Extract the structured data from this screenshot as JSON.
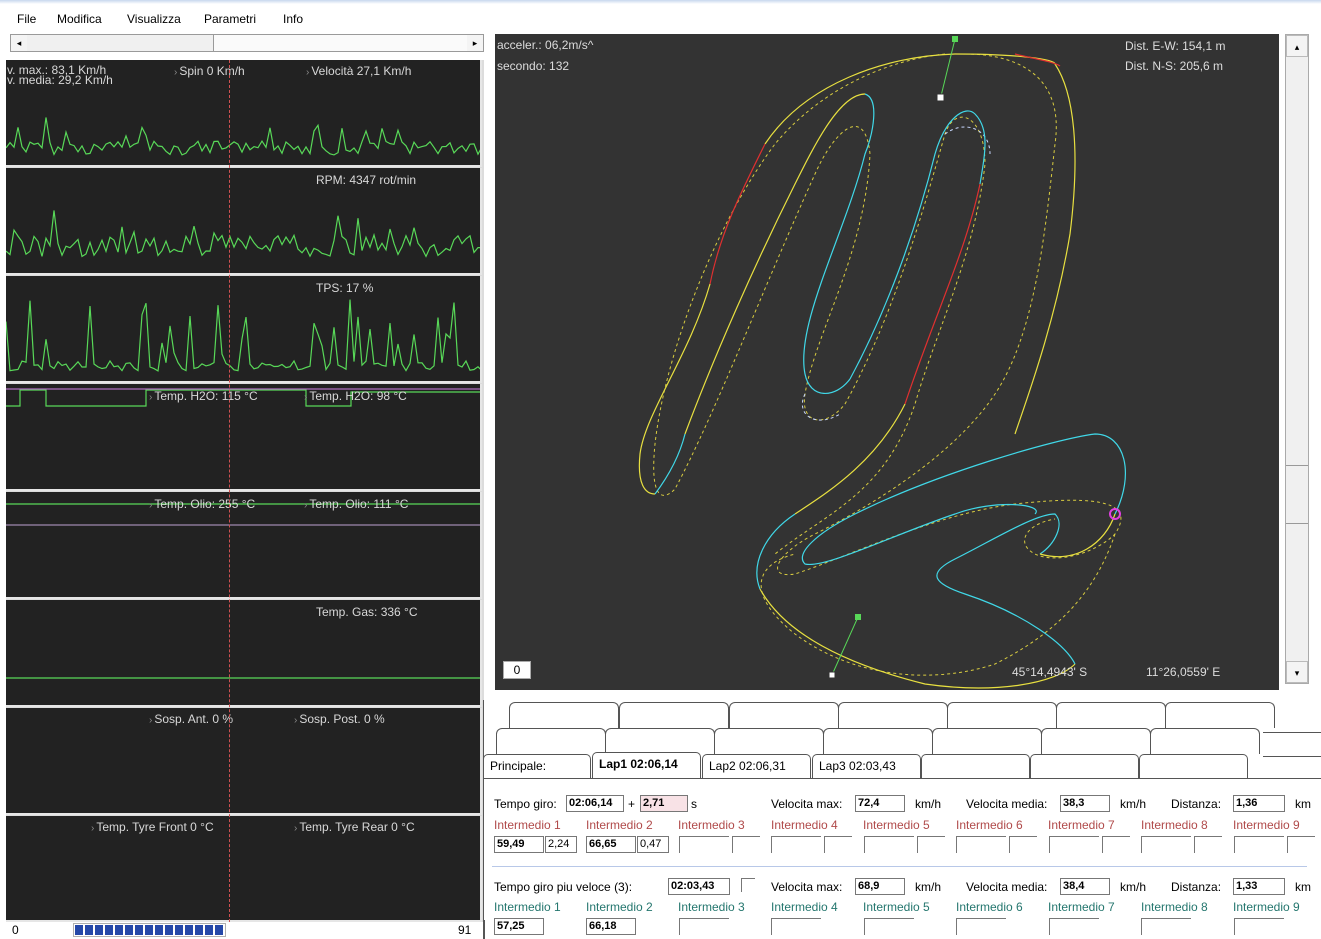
{
  "menu": [
    "File",
    "Modifica",
    "Visualizza",
    "Parametri",
    "Info"
  ],
  "hscroll": {
    "left_arrow": "◂",
    "right_arrow": "▸"
  },
  "panels": {
    "speed": {
      "vmax": "v. max.: 83,1 Km/h",
      "vmedia": "v. media: 29,2 Km/h",
      "spin": "Spin  0 Km/h",
      "velocita": "Velocità  27,1 Km/h"
    },
    "rpm": {
      "label": "RPM:  4347 rot/min"
    },
    "tps": {
      "label": "TPS:  17 %"
    },
    "h2o": {
      "label1": "Temp. H2O:  115 °C",
      "label2": "Temp. H2O:  98 °C"
    },
    "olio": {
      "label1": "Temp. Olio:  255 °C",
      "label2": "Temp. Olio:  111 °C"
    },
    "gas": {
      "label": "Temp. Gas:  336 °C"
    },
    "sosp": {
      "label1": "Sosp. Ant.   0 %",
      "label2": "Sosp. Post.   0 %"
    },
    "tyre": {
      "label1": "Temp. Tyre Front    0 °C",
      "label2": "Temp. Tyre Rear    0 °C"
    }
  },
  "status": {
    "left": "0",
    "right": "91",
    "progress_fraction": 0.98
  },
  "map": {
    "accel": "acceler.: 06,2m/s^",
    "secondo": "secondo: 132",
    "dist_ew": "Dist. E-W: 154,1 m",
    "dist_ns": "Dist. N-S: 205,6 m",
    "zoom": "0",
    "lat": "45°14,4943' S",
    "lon": "11°26,0559' E"
  },
  "vscroll": {
    "up_arrow": "▴",
    "down_arrow": "▾"
  },
  "tabs": {
    "principale": "Principale:",
    "lap1": "Lap1  02:06,14",
    "lap2": "Lap2  02:06,31",
    "lap3": "Lap3  02:03,43"
  },
  "current": {
    "tempo_giro_label": "Tempo giro:",
    "tempo_giro": "02:06,14",
    "plus": "+",
    "delta": "2,71",
    "delta_unit": "s",
    "vmax_label": "Velocita max:",
    "vmax": "72,4",
    "vmax_unit": "km/h",
    "vmedia_label": "Velocita media:",
    "vmedia": "38,3",
    "vmedia_unit": "km/h",
    "dist_label": "Distanza:",
    "dist": "1,36",
    "dist_unit": "km",
    "intermedi": [
      "Intermedio 1",
      "Intermedio 2",
      "Intermedio 3",
      "Intermedio 4",
      "Intermedio 5",
      "Intermedio 6",
      "Intermedio 7",
      "Intermedio 8",
      "Intermedio 9"
    ],
    "i1": "59,49",
    "i1d": "2,24",
    "i2": "66,65",
    "i2d": "0,47"
  },
  "best": {
    "label": "Tempo giro piu veloce (3):",
    "tempo": "02:03,43",
    "vmax_label": "Velocita max:",
    "vmax": "68,9",
    "vmax_unit": "km/h",
    "vmedia_label": "Velocita media:",
    "vmedia": "38,4",
    "vmedia_unit": "km/h",
    "dist_label": "Distanza:",
    "dist": "1,33",
    "dist_unit": "km",
    "intermedi": [
      "Intermedio 1",
      "Intermedio 2",
      "Intermedio 3",
      "Intermedio 4",
      "Intermedio 5",
      "Intermedio 6",
      "Intermedio 7",
      "Intermedio 8",
      "Intermedio 9"
    ],
    "i1": "57,25",
    "i2": "66,18"
  },
  "colors": {
    "panel_bg": "#222222",
    "map_bg": "#333333",
    "trace": "#58d858",
    "track_yellow": "#e8e040",
    "track_cyan": "#40d8e8",
    "track_red": "#e03030",
    "cursor": "#d05050"
  }
}
